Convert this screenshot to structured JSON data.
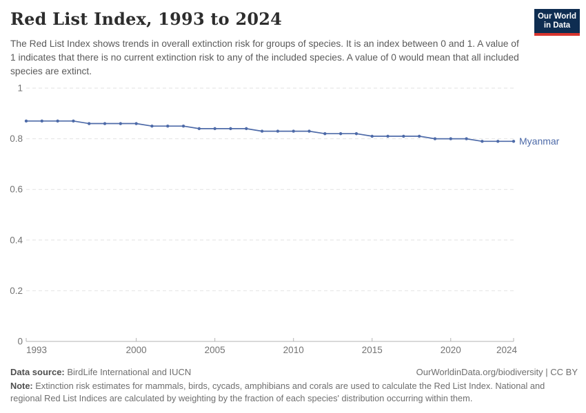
{
  "header": {
    "title": "Red List Index, 1993 to 2024",
    "subtitle": "The Red List Index shows trends in overall extinction risk for groups of species. It is an index between 0 and 1. A value of 1 indicates that there is no current extinction risk to any of the included species. A value of 0 would mean that all included species are extinct.",
    "logo": {
      "line1": "Our World",
      "line2": "in Data",
      "bg_color": "#0e2d51",
      "accent_color": "#d8352e"
    }
  },
  "chart_data": {
    "type": "line",
    "title": "Red List Index, 1993 to 2024",
    "xlabel": "",
    "ylabel": "",
    "xlim": [
      1993,
      2024
    ],
    "ylim": [
      0,
      1
    ],
    "xticks": [
      1993,
      2000,
      2005,
      2010,
      2015,
      2020,
      2024
    ],
    "yticks": [
      0,
      0.2,
      0.4,
      0.6,
      0.8,
      1
    ],
    "grid": "horizontal-dashed",
    "legend": "end-of-line-label",
    "axis_color": "#b3b3b3",
    "gridline_color": "#e2e2e2",
    "tick_label_color": "#737373",
    "series": [
      {
        "name": "Myanmar",
        "color": "#4d6aa8",
        "x": [
          1993,
          1994,
          1995,
          1996,
          1997,
          1998,
          1999,
          2000,
          2001,
          2002,
          2003,
          2004,
          2005,
          2006,
          2007,
          2008,
          2009,
          2010,
          2011,
          2012,
          2013,
          2014,
          2015,
          2016,
          2017,
          2018,
          2019,
          2020,
          2021,
          2022,
          2023,
          2024
        ],
        "values": [
          0.87,
          0.87,
          0.87,
          0.87,
          0.86,
          0.86,
          0.86,
          0.86,
          0.85,
          0.85,
          0.85,
          0.84,
          0.84,
          0.84,
          0.84,
          0.83,
          0.83,
          0.83,
          0.83,
          0.82,
          0.82,
          0.82,
          0.81,
          0.81,
          0.81,
          0.81,
          0.8,
          0.8,
          0.8,
          0.79,
          0.79,
          0.79
        ]
      }
    ]
  },
  "footer": {
    "source_label": "Data source:",
    "source_value": "BirdLife International and IUCN",
    "link": "OurWorldinData.org/biodiversity | CC BY",
    "note_label": "Note:",
    "note_text": "Extinction risk estimates for mammals, birds, cycads, amphibians and corals are used to calculate the Red List Index. National and regional Red List Indices are calculated by weighting by the fraction of each species' distribution occurring within them."
  }
}
